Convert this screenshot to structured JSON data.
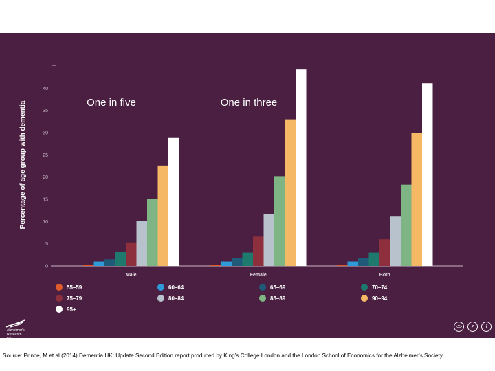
{
  "chart_data": {
    "type": "bar",
    "ylabel": "Percentage of age group with dementia",
    "xlabel": "",
    "ylim": [
      0,
      45
    ],
    "yticks": [
      0,
      5,
      10,
      15,
      20,
      25,
      30,
      35,
      40
    ],
    "grid": false,
    "categories": [
      "Male",
      "Female",
      "Both"
    ],
    "series": [
      {
        "name": "55–59",
        "color": "#e05a2b",
        "values": [
          0.2,
          0.2,
          0.2
        ]
      },
      {
        "name": "60–64",
        "color": "#2e9ad8",
        "values": [
          1.0,
          1.0,
          1.0
        ]
      },
      {
        "name": "65–69",
        "color": "#1f5a78",
        "values": [
          1.5,
          1.8,
          1.7
        ]
      },
      {
        "name": "70–74",
        "color": "#1d7a6c",
        "values": [
          3.1,
          3.0,
          3.0
        ]
      },
      {
        "name": "75–79",
        "color": "#8e2f3d",
        "values": [
          5.3,
          6.6,
          6.0
        ]
      },
      {
        "name": "80–84",
        "color": "#b8c2cc",
        "values": [
          10.2,
          11.7,
          11.1
        ]
      },
      {
        "name": "85–89",
        "color": "#7fb584",
        "values": [
          15.1,
          20.2,
          18.3
        ]
      },
      {
        "name": "90–94",
        "color": "#f5b865",
        "values": [
          22.6,
          33.0,
          29.9
        ]
      },
      {
        "name": "95+",
        "color": "#ffffff",
        "values": [
          28.8,
          44.2,
          41.1
        ]
      }
    ],
    "annotations": [
      {
        "text": "One in five",
        "category": "Male"
      },
      {
        "text": "One in three",
        "category": "Female"
      }
    ]
  },
  "logo": {
    "lines": [
      "Alzheimer's",
      "Research",
      "UK"
    ]
  },
  "controls": {
    "embed": "<>",
    "share": "↗",
    "info": "i"
  },
  "source": "Source: Prince, M et al (2014) Dementia UK: Update Second Edition report produced by King’s College London and the London School of Economics for the Alzheimer’s Society"
}
